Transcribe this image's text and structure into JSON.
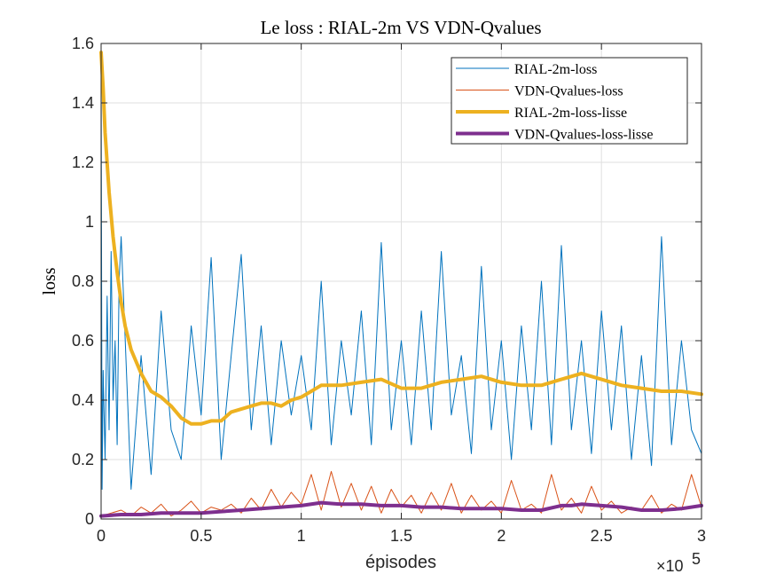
{
  "chart_data": {
    "type": "line",
    "title": "Le loss : RIAL-2m VS VDN-Qvalues",
    "xlabel": "épisodes",
    "ylabel": "loss",
    "x_exponent_label": "×10",
    "x_exponent_power": "5",
    "xlim": [
      0,
      3
    ],
    "ylim": [
      0,
      1.6
    ],
    "x_ticks": [
      0,
      0.5,
      1,
      1.5,
      2,
      2.5,
      3
    ],
    "x_tick_labels": [
      "0",
      "0.5",
      "1",
      "1.5",
      "2",
      "2.5",
      "3"
    ],
    "y_ticks": [
      0,
      0.2,
      0.4,
      0.6,
      0.8,
      1,
      1.2,
      1.4,
      1.6
    ],
    "y_tick_labels": [
      "0",
      "0.2",
      "0.4",
      "0.6",
      "0.8",
      "1",
      "1.2",
      "1.4",
      "1.6"
    ],
    "grid": true,
    "legend_position": "top-right",
    "series": [
      {
        "name": "RIAL-2m-loss",
        "color": "#0072BD",
        "style": "thin",
        "x": [
          0,
          0.005,
          0.01,
          0.02,
          0.03,
          0.04,
          0.05,
          0.06,
          0.07,
          0.08,
          0.09,
          0.1,
          0.15,
          0.2,
          0.25,
          0.3,
          0.35,
          0.4,
          0.45,
          0.5,
          0.55,
          0.6,
          0.65,
          0.7,
          0.75,
          0.8,
          0.85,
          0.9,
          0.95,
          1.0,
          1.05,
          1.1,
          1.15,
          1.2,
          1.25,
          1.3,
          1.35,
          1.4,
          1.45,
          1.5,
          1.55,
          1.6,
          1.65,
          1.7,
          1.75,
          1.8,
          1.85,
          1.9,
          1.95,
          2.0,
          2.05,
          2.1,
          2.15,
          2.2,
          2.25,
          2.3,
          2.35,
          2.4,
          2.45,
          2.5,
          2.55,
          2.6,
          2.65,
          2.7,
          2.75,
          2.8,
          2.85,
          2.9,
          2.95,
          3.0
        ],
        "y": [
          1.55,
          0.1,
          0.5,
          0.2,
          0.75,
          0.3,
          0.9,
          0.4,
          0.6,
          0.25,
          0.8,
          0.95,
          0.1,
          0.55,
          0.15,
          0.7,
          0.3,
          0.2,
          0.65,
          0.35,
          0.88,
          0.2,
          0.55,
          0.89,
          0.3,
          0.65,
          0.25,
          0.6,
          0.35,
          0.55,
          0.3,
          0.8,
          0.25,
          0.6,
          0.35,
          0.7,
          0.25,
          0.93,
          0.3,
          0.6,
          0.25,
          0.7,
          0.3,
          0.9,
          0.35,
          0.55,
          0.22,
          0.85,
          0.3,
          0.6,
          0.2,
          0.65,
          0.3,
          0.8,
          0.25,
          0.92,
          0.3,
          0.6,
          0.22,
          0.7,
          0.3,
          0.65,
          0.2,
          0.55,
          0.18,
          0.95,
          0.25,
          0.6,
          0.3,
          0.22
        ]
      },
      {
        "name": "VDN-Qvalues-loss",
        "color": "#D95319",
        "style": "thin",
        "x": [
          0,
          0.05,
          0.1,
          0.15,
          0.2,
          0.25,
          0.3,
          0.35,
          0.4,
          0.45,
          0.5,
          0.55,
          0.6,
          0.65,
          0.7,
          0.75,
          0.8,
          0.85,
          0.9,
          0.95,
          1.0,
          1.05,
          1.1,
          1.15,
          1.2,
          1.25,
          1.3,
          1.35,
          1.4,
          1.45,
          1.5,
          1.55,
          1.6,
          1.65,
          1.7,
          1.75,
          1.8,
          1.85,
          1.9,
          1.95,
          2.0,
          2.05,
          2.1,
          2.15,
          2.2,
          2.25,
          2.3,
          2.35,
          2.4,
          2.45,
          2.5,
          2.55,
          2.6,
          2.65,
          2.7,
          2.75,
          2.8,
          2.85,
          2.9,
          2.95,
          3.0
        ],
        "y": [
          0.01,
          0.02,
          0.03,
          0.01,
          0.04,
          0.02,
          0.05,
          0.01,
          0.03,
          0.06,
          0.02,
          0.04,
          0.03,
          0.05,
          0.02,
          0.07,
          0.03,
          0.1,
          0.04,
          0.09,
          0.05,
          0.15,
          0.03,
          0.16,
          0.04,
          0.12,
          0.03,
          0.11,
          0.02,
          0.1,
          0.04,
          0.08,
          0.02,
          0.09,
          0.03,
          0.12,
          0.02,
          0.08,
          0.03,
          0.06,
          0.02,
          0.13,
          0.03,
          0.05,
          0.02,
          0.15,
          0.03,
          0.07,
          0.02,
          0.11,
          0.03,
          0.06,
          0.02,
          0.04,
          0.03,
          0.08,
          0.02,
          0.05,
          0.03,
          0.15,
          0.04
        ]
      },
      {
        "name": "RIAL-2m-loss-lisse",
        "color": "#EDB120",
        "style": "thick",
        "x": [
          0,
          0.01,
          0.02,
          0.04,
          0.06,
          0.08,
          0.1,
          0.12,
          0.15,
          0.2,
          0.25,
          0.3,
          0.35,
          0.4,
          0.45,
          0.5,
          0.55,
          0.6,
          0.65,
          0.7,
          0.75,
          0.8,
          0.85,
          0.9,
          0.95,
          1.0,
          1.05,
          1.1,
          1.2,
          1.3,
          1.4,
          1.5,
          1.6,
          1.7,
          1.8,
          1.9,
          2.0,
          2.1,
          2.2,
          2.3,
          2.4,
          2.5,
          2.6,
          2.7,
          2.8,
          2.9,
          3.0
        ],
        "y": [
          1.57,
          1.45,
          1.3,
          1.1,
          0.95,
          0.83,
          0.73,
          0.65,
          0.57,
          0.49,
          0.43,
          0.41,
          0.38,
          0.34,
          0.32,
          0.32,
          0.33,
          0.33,
          0.36,
          0.37,
          0.38,
          0.39,
          0.39,
          0.38,
          0.4,
          0.41,
          0.43,
          0.45,
          0.45,
          0.46,
          0.47,
          0.44,
          0.44,
          0.46,
          0.47,
          0.48,
          0.46,
          0.45,
          0.45,
          0.47,
          0.49,
          0.47,
          0.45,
          0.44,
          0.43,
          0.43,
          0.42
        ]
      },
      {
        "name": "VDN-Qvalues-loss-lisse",
        "color": "#7E2F8E",
        "style": "thick",
        "x": [
          0,
          0.1,
          0.2,
          0.3,
          0.4,
          0.5,
          0.6,
          0.7,
          0.8,
          0.9,
          1.0,
          1.1,
          1.2,
          1.3,
          1.4,
          1.5,
          1.6,
          1.7,
          1.8,
          1.9,
          2.0,
          2.1,
          2.2,
          2.3,
          2.35,
          2.4,
          2.5,
          2.6,
          2.7,
          2.8,
          2.9,
          3.0
        ],
        "y": [
          0.01,
          0.015,
          0.015,
          0.02,
          0.02,
          0.02,
          0.025,
          0.03,
          0.035,
          0.04,
          0.045,
          0.055,
          0.05,
          0.05,
          0.045,
          0.045,
          0.04,
          0.04,
          0.035,
          0.035,
          0.035,
          0.03,
          0.03,
          0.045,
          0.045,
          0.05,
          0.045,
          0.04,
          0.03,
          0.03,
          0.035,
          0.045
        ]
      }
    ]
  }
}
